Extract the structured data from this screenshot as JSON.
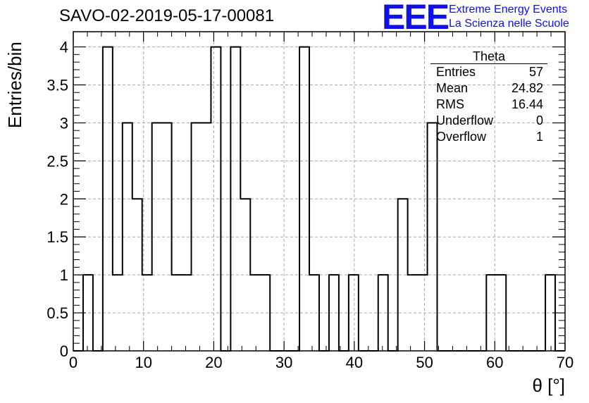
{
  "header": {
    "title": "SAVO-02-2019-05-17-00081",
    "logo": "EEE",
    "logo_line1": "Extreme Energy Events",
    "logo_line2": "La Scienza nelle Scuole"
  },
  "stats": {
    "title": "Theta",
    "rows": [
      {
        "label": "Entries",
        "value": "57"
      },
      {
        "label": "Mean",
        "value": "24.82"
      },
      {
        "label": "RMS",
        "value": "16.44"
      },
      {
        "label": "Underflow",
        "value": "0"
      },
      {
        "label": "Overflow",
        "value": "1"
      }
    ]
  },
  "colors": {
    "line": "#000000",
    "grid": "#a8a8a8",
    "logo": "#1010e8"
  },
  "chart_data": {
    "type": "histogram",
    "xlabel": "θ [°]",
    "ylabel": "Entries/bin",
    "xlim": [
      0,
      70
    ],
    "ylim": [
      0,
      4.2
    ],
    "x_ticks": [
      0,
      10,
      20,
      30,
      40,
      50,
      60,
      70
    ],
    "y_ticks": [
      0,
      0.5,
      1,
      1.5,
      2,
      2.5,
      3,
      3.5,
      4
    ],
    "y_tick_labels": [
      "0",
      "0.5",
      "1",
      "1.5",
      "2",
      "2.5",
      "3",
      "3.5",
      "4"
    ],
    "grid": true,
    "bin_edges": [
      0,
      1.4,
      2.8,
      4.2,
      5.6,
      7,
      8.4,
      9.8,
      11.2,
      12.6,
      14,
      15.4,
      16.8,
      18.2,
      19.6,
      21,
      22.4,
      23.8,
      25.2,
      26.6,
      28,
      29.4,
      30.8,
      32.2,
      33.6,
      35,
      36.4,
      37.8,
      39.2,
      40.6,
      42,
      43.4,
      44.8,
      46.2,
      47.6,
      49,
      50.4,
      51.8,
      53.2,
      54.6,
      56,
      57.4,
      58.8,
      60.2,
      61.6,
      63,
      64.4,
      65.8,
      67.2,
      68.6,
      70
    ],
    "counts": [
      0,
      1,
      0,
      4,
      1,
      3,
      2,
      1,
      3,
      3,
      1,
      1,
      3,
      3,
      4,
      0,
      4,
      2,
      1,
      1,
      0,
      0,
      0,
      4,
      1,
      0,
      1,
      0,
      1,
      0,
      0,
      1,
      0,
      2,
      1,
      1,
      3,
      0,
      0,
      0,
      0,
      0,
      1,
      1,
      0,
      0,
      0,
      0,
      1,
      0
    ]
  }
}
